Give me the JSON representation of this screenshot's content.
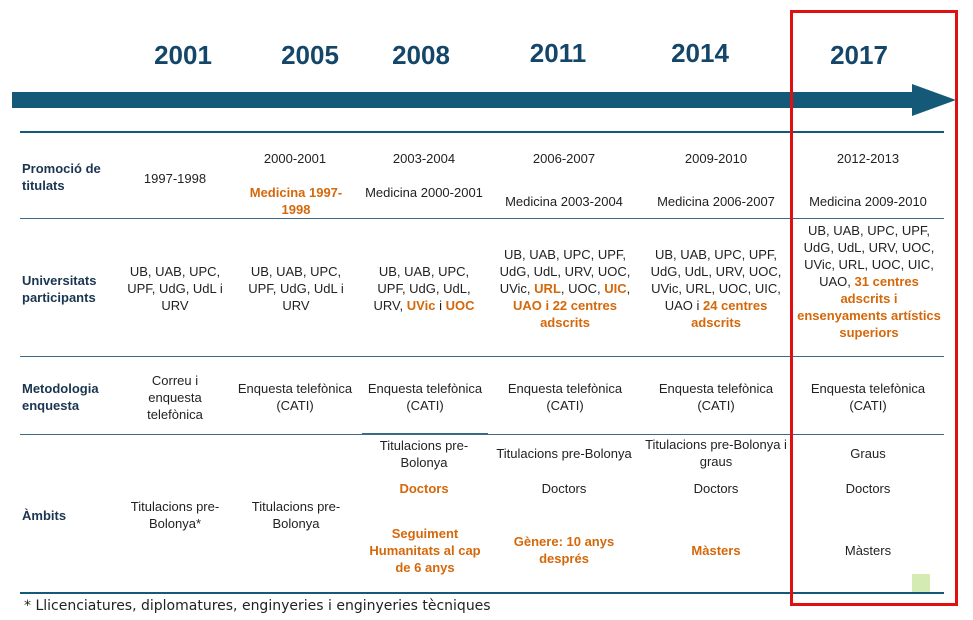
{
  "years": [
    "2001",
    "2005",
    "2008",
    "2011",
    "2014",
    "2017"
  ],
  "rows": {
    "promocio": {
      "label": "Promoció de titulats",
      "cells": [
        {
          "a": "1997-1998",
          "b": ""
        },
        {
          "a": "2000-2001",
          "b": "Medicina 1997-1998"
        },
        {
          "a": "2003-2004",
          "b": "Medicina 2000-2001"
        },
        {
          "a": "2006-2007",
          "b": "Medicina 2003-2004"
        },
        {
          "a": "2009-2010",
          "b": "Medicina 2006-2007"
        },
        {
          "a": "2012-2013",
          "b": "Medicina 2009-2010"
        }
      ]
    },
    "universitats": {
      "label": "Universitats participants",
      "c1": "UB, UAB, UPC, UPF, UdG, UdL i URV",
      "c2": "UB, UAB, UPC, UPF, UdG, UdL i URV",
      "c3a": "UB, UAB, UPC, UPF, UdG, UdL, URV,",
      "c3b": "UVic",
      "c3c": "i",
      "c3d": "UOC",
      "c4a": "UB, UAB, UPC, UPF, UdG, UdL, URV, UOC, UVic,",
      "c4b": "URL",
      "c4c": ", UOC,",
      "c4d": "UIC",
      "c4e": ",",
      "c4f": "UAO i 22 centres adscrits",
      "c5a": "UB, UAB, UPC, UPF, UdG, UdL, URV, UOC, UVic, URL, UOC, UIC, UAO i",
      "c5b": "24 centres adscrits",
      "c6a": "UB, UAB, UPC, UPF, UdG, UdL, URV, UOC, UVic, URL, UOC, UIC, UAO,",
      "c6b": "31 centres adscrits i ensenyaments artístics superiors"
    },
    "metodologia": {
      "label": "Metodologia enquesta",
      "cells": [
        "Correu i enquesta telefònica",
        "Enquesta telefònica (CATI)",
        "Enquesta telefònica (CATI)",
        "Enquesta telefònica (CATI)",
        "Enquesta telefònica (CATI)",
        "Enquesta telefònica (CATI)"
      ]
    },
    "ambits": {
      "label": "Àmbits",
      "c1": "Titulacions pre-Bolonya*",
      "c2": "Titulacions pre-Bolonya",
      "c3a": "Titulacions pre-Bolonya",
      "c3b": "Doctors",
      "c3c": "Seguiment Humanitats al cap de 6 anys",
      "c4a": "Titulacions pre-Bolonya",
      "c4b": "Doctors",
      "c4c": "Gènere: 10 anys després",
      "c5a": "Titulacions pre-Bolonya i graus",
      "c5b": "Doctors",
      "c5c": "Màsters",
      "c6a": "Graus",
      "c6b": "Doctors",
      "c6c": "Màsters"
    }
  },
  "footnote": "* Llicenciatures, diplomatures, enginyeries i enginyeries tècniques",
  "colors": {
    "accent": "#145a78",
    "highlight": "#d4680a",
    "box": "#e01010"
  }
}
